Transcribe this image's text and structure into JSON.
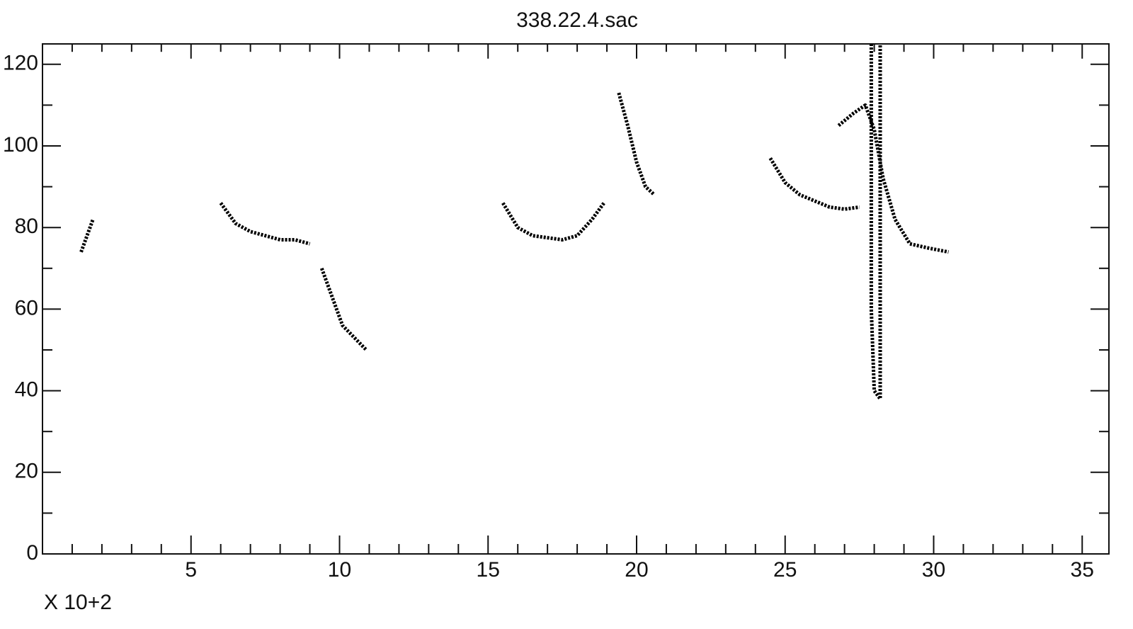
{
  "chart_data": {
    "type": "contour",
    "title": "338.22.4.sac",
    "xlabel": "X 10+2",
    "color": "#000000",
    "xlim": [
      0,
      35.9
    ],
    "ylim": [
      0,
      125
    ],
    "xticks": [
      5,
      10,
      15,
      20,
      25,
      30,
      35
    ],
    "yticks": [
      0,
      20,
      40,
      60,
      80,
      100,
      120
    ],
    "xminorticks": [
      1,
      2,
      3,
      4,
      6,
      7,
      8,
      9,
      11,
      12,
      13,
      14,
      16,
      17,
      18,
      19,
      21,
      22,
      23,
      24,
      26,
      27,
      28,
      29,
      31,
      32,
      33,
      34
    ],
    "yminorticks": [
      10,
      30,
      50,
      70,
      90,
      110
    ],
    "series": [
      {
        "x": [
          1.3,
          1.5,
          1.7
        ],
        "values": [
          74,
          78,
          82
        ]
      },
      {
        "x": [
          6,
          6.5,
          7,
          7.5,
          8,
          8.5,
          9
        ],
        "values": [
          86,
          81,
          79,
          78,
          77,
          77,
          76
        ]
      },
      {
        "x": [
          9.4,
          9.8,
          10.1,
          10.5,
          10.9
        ],
        "values": [
          70,
          62,
          56,
          53,
          50
        ]
      },
      {
        "x": [
          15.5,
          16,
          16.5,
          17,
          17.5,
          18,
          18.5,
          18.9
        ],
        "values": [
          86,
          80,
          78,
          77.5,
          77,
          78,
          82,
          86
        ]
      },
      {
        "x": [
          19.4,
          19.7,
          20,
          20.3,
          20.6
        ],
        "values": [
          113,
          105,
          96,
          90,
          88
        ]
      },
      {
        "x": [
          24.5,
          25,
          25.5,
          26,
          26.5,
          27,
          27.5
        ],
        "values": [
          97,
          91,
          88,
          86.5,
          85,
          84.5,
          85
        ]
      },
      {
        "x": [
          26.8,
          27.3,
          27.7,
          28,
          28.3,
          28.7,
          29.2,
          29.8,
          30.5
        ],
        "values": [
          105,
          108,
          110,
          104,
          92,
          82,
          76,
          75,
          74
        ]
      },
      {
        "x": [
          27.9,
          27.9,
          28,
          28.2,
          28.2,
          28.2
        ],
        "values": [
          125,
          60,
          40,
          38,
          60,
          125
        ]
      }
    ]
  }
}
